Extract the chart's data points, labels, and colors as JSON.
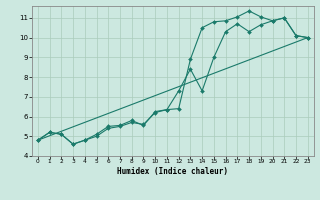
{
  "xlabel": "Humidex (Indice chaleur)",
  "bg_color": "#cce8e0",
  "grid_color": "#aaccbb",
  "line_color": "#1a7a6a",
  "xlim": [
    -0.5,
    23.5
  ],
  "ylim": [
    4,
    11.6
  ],
  "xticks": [
    0,
    1,
    2,
    3,
    4,
    5,
    6,
    7,
    8,
    9,
    10,
    11,
    12,
    13,
    14,
    15,
    16,
    17,
    18,
    19,
    20,
    21,
    22,
    23
  ],
  "yticks": [
    4,
    5,
    6,
    7,
    8,
    9,
    10,
    11
  ],
  "line1_x": [
    0,
    1,
    2,
    3,
    4,
    5,
    6,
    7,
    8,
    9,
    10,
    11,
    12,
    13,
    14,
    15,
    16,
    17,
    18,
    19,
    20,
    21,
    22,
    23
  ],
  "line1_y": [
    4.8,
    5.2,
    5.1,
    4.6,
    4.8,
    5.0,
    5.4,
    5.5,
    5.7,
    5.6,
    6.2,
    6.35,
    6.4,
    8.9,
    10.5,
    10.8,
    10.85,
    11.05,
    11.35,
    11.05,
    10.85,
    11.0,
    10.1,
    10.0
  ],
  "line2_x": [
    0,
    1,
    2,
    3,
    4,
    5,
    6,
    7,
    8,
    9,
    10,
    11,
    12,
    13,
    14,
    15,
    16,
    17,
    18,
    19,
    20,
    21,
    22,
    23
  ],
  "line2_y": [
    4.8,
    5.2,
    5.1,
    4.6,
    4.8,
    5.1,
    5.5,
    5.55,
    5.8,
    5.55,
    6.25,
    6.35,
    7.3,
    8.4,
    7.3,
    9.0,
    10.3,
    10.7,
    10.3,
    10.65,
    10.85,
    11.0,
    10.1,
    10.0
  ],
  "line3_x": [
    0,
    23
  ],
  "line3_y": [
    4.8,
    10.0
  ]
}
